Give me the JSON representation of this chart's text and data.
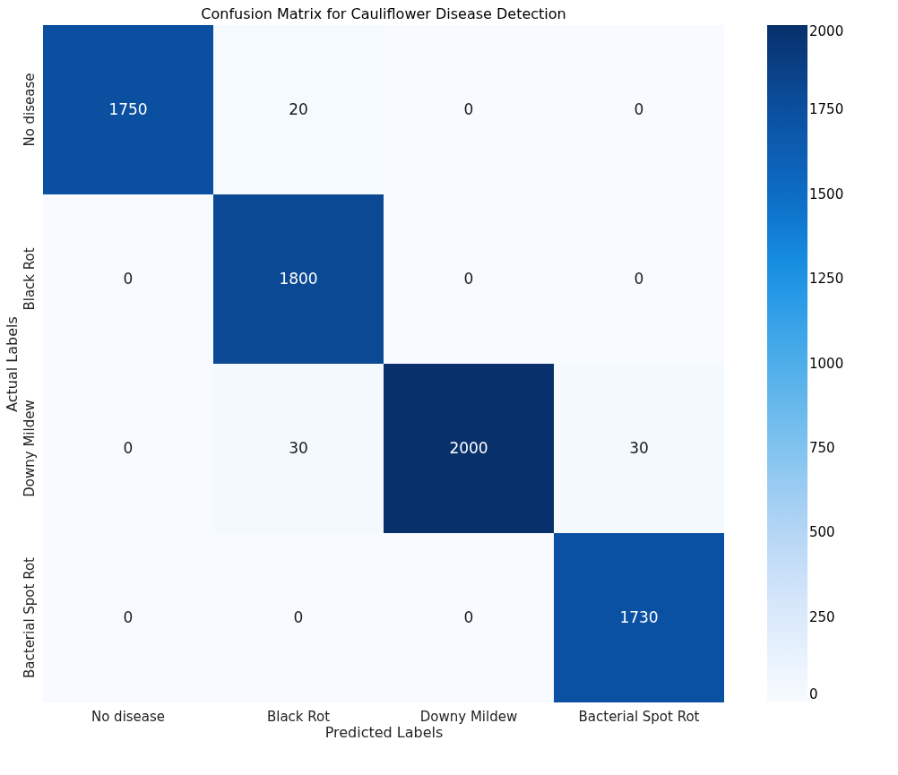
{
  "chart_data": {
    "type": "heatmap",
    "title": "Confusion Matrix for Cauliflower Disease Detection",
    "xlabel": "Predicted Labels",
    "ylabel": "Actual Labels",
    "categories": [
      "No disease",
      "Black Rot",
      "Downy Mildew",
      "Bacterial Spot Rot"
    ],
    "y_categories": [
      "No disease",
      "Black Rot",
      "Downy Mildew",
      "Bacterial Spot Rot"
    ],
    "cells": [
      [
        1750,
        20,
        0,
        0
      ],
      [
        0,
        1800,
        0,
        0
      ],
      [
        0,
        30,
        2000,
        30
      ],
      [
        0,
        0,
        0,
        1730
      ]
    ],
    "data_labels": true,
    "clim": [
      0,
      2000
    ],
    "cticks": [
      0,
      250,
      500,
      750,
      1000,
      1250,
      1500,
      1750,
      2000
    ]
  }
}
